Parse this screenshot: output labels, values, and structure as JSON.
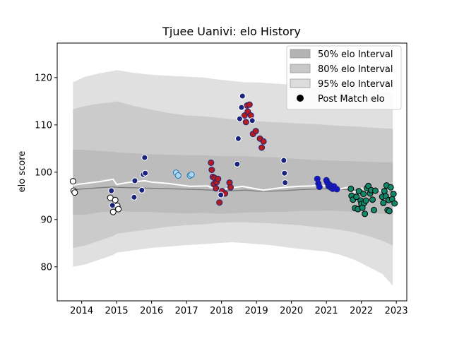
{
  "chart_data": {
    "type": "scatter",
    "title": "Tjuee Uanivi: elo History",
    "xlabel": "",
    "ylabel": "elo score",
    "xlim": [
      2013.3,
      2023.3
    ],
    "ylim": [
      72.8,
      127.3
    ],
    "x_ticks": [
      2014,
      2015,
      2016,
      2017,
      2018,
      2019,
      2020,
      2021,
      2022,
      2023
    ],
    "y_ticks": [
      80,
      90,
      100,
      110,
      120
    ],
    "grid": false,
    "legend_position": "top-right",
    "legend": [
      {
        "label": "50% elo Interval",
        "kind": "patch",
        "color": "#b3b3b3"
      },
      {
        "label": "80% elo Interval",
        "kind": "patch",
        "color": "#c8c8c8"
      },
      {
        "label": "95% elo Interval",
        "kind": "patch",
        "color": "#dddddd"
      },
      {
        "label": "Post Match elo",
        "kind": "marker",
        "color": "#000000"
      }
    ],
    "bands": {
      "x": [
        2013.75,
        2014.1,
        2014.5,
        2014.9,
        2015.0,
        2015.5,
        2016.0,
        2016.5,
        2017.0,
        2017.5,
        2017.9,
        2018.3,
        2018.7,
        2019.0,
        2019.4,
        2019.8,
        2020.2,
        2020.6,
        2021.0,
        2021.4,
        2021.8,
        2022.2,
        2022.6,
        2022.9
      ],
      "median": [
        96.3,
        96.5,
        96.7,
        96.9,
        96.8,
        96.7,
        96.6,
        96.5,
        96.4,
        96.3,
        96.1,
        96.1,
        96.2,
        96.0,
        96.0,
        96.1,
        96.3,
        96.4,
        96.5,
        96.4,
        96.2,
        96.1,
        96.1,
        96.0
      ],
      "lower50": [
        91.0,
        91.0,
        91.5,
        91.8,
        91.8,
        91.6,
        91.6,
        91.4,
        91.3,
        91.4,
        91.2,
        91.3,
        91.5,
        91.5,
        91.6,
        91.6,
        91.8,
        91.8,
        91.9,
        91.8,
        91.6,
        91.4,
        91.2,
        91.0
      ],
      "upper50": [
        104.8,
        104.7,
        104.5,
        104.3,
        104.2,
        104.0,
        103.8,
        103.7,
        103.6,
        103.6,
        103.4,
        103.4,
        103.4,
        103.2,
        103.2,
        103.0,
        102.8,
        102.6,
        102.5,
        102.4,
        102.3,
        102.2,
        102.1,
        102.1
      ],
      "lower80": [
        84.0,
        84.5,
        85.5,
        86.5,
        87.0,
        87.5,
        88.0,
        88.5,
        88.8,
        89.0,
        89.3,
        89.4,
        89.4,
        89.3,
        89.2,
        89.0,
        88.8,
        88.5,
        88.2,
        87.8,
        87.3,
        86.5,
        85.5,
        84.5
      ],
      "upper80": [
        113.3,
        114.0,
        114.5,
        114.8,
        115.0,
        114.0,
        113.2,
        112.5,
        112.0,
        111.8,
        111.5,
        111.2,
        111.0,
        110.8,
        110.6,
        110.5,
        110.3,
        110.2,
        110.0,
        109.8,
        109.7,
        109.5,
        109.3,
        109.2
      ],
      "lower95": [
        80.0,
        80.5,
        81.5,
        82.5,
        83.0,
        83.5,
        84.0,
        84.3,
        84.6,
        84.8,
        85.0,
        85.2,
        85.0,
        84.8,
        84.6,
        84.2,
        83.8,
        83.5,
        83.2,
        82.5,
        81.5,
        80.0,
        78.5,
        76.0
      ],
      "upper95": [
        119.0,
        120.2,
        120.9,
        121.4,
        121.6,
        121.0,
        120.6,
        120.4,
        120.2,
        120.0,
        119.6,
        119.3,
        119.0,
        119.0,
        118.8,
        118.6,
        118.4,
        118.0,
        117.8,
        117.6,
        117.6,
        117.3,
        117.1,
        117.0
      ]
    },
    "post_match_line": {
      "x": [
        2013.75,
        2014.5,
        2014.9,
        2015.0,
        2015.3,
        2015.8,
        2016.0,
        2016.5,
        2016.8,
        2017.1,
        2017.6,
        2017.9,
        2018.2,
        2018.4,
        2018.6,
        2018.9,
        2019.2,
        2019.4,
        2019.8,
        2020.2,
        2020.6,
        2020.8,
        2021.0,
        2021.3,
        2021.6,
        2021.8,
        2022.0,
        2022.2,
        2022.4,
        2022.6,
        2022.8,
        2022.95
      ],
      "y": [
        97.3,
        98.0,
        98.5,
        97.4,
        97.8,
        98.2,
        97.9,
        97.6,
        97.3,
        97.0,
        97.1,
        96.2,
        96.6,
        96.8,
        97.0,
        96.6,
        96.2,
        96.4,
        96.8,
        97.0,
        97.1,
        97.3,
        97.0,
        96.3,
        96.8,
        95.8,
        96.6,
        95.7,
        96.6,
        95.9,
        96.2,
        96.3
      ]
    },
    "series": [
      {
        "face": "#ffffff",
        "edge": "#000000",
        "points": [
          [
            2013.75,
            98.1
          ],
          [
            2013.77,
            96.1
          ],
          [
            2013.8,
            95.7
          ],
          [
            2014.82,
            94.6
          ],
          [
            2014.9,
            91.6
          ],
          [
            2014.92,
            93.1
          ],
          [
            2014.96,
            94.1
          ],
          [
            2015.02,
            92.9
          ],
          [
            2015.05,
            92.2
          ]
        ]
      },
      {
        "face": "#1a237e",
        "edge": "#ffffff",
        "points": [
          [
            2014.85,
            96.1
          ],
          [
            2014.88,
            93.0
          ],
          [
            2015.5,
            94.7
          ],
          [
            2015.52,
            98.2
          ],
          [
            2015.72,
            96.2
          ],
          [
            2015.76,
            99.5
          ],
          [
            2015.8,
            103.1
          ],
          [
            2015.82,
            99.8
          ]
        ]
      },
      {
        "face": "#aed6f1",
        "edge": "#1f77b4",
        "points": [
          [
            2016.7,
            99.9
          ],
          [
            2016.76,
            99.3
          ],
          [
            2017.1,
            99.3
          ],
          [
            2017.14,
            99.5
          ]
        ]
      },
      {
        "face": "#b71c1c",
        "edge": "#1a237e",
        "points": [
          [
            2017.7,
            102.0
          ],
          [
            2017.72,
            100.5
          ],
          [
            2017.75,
            99.0
          ],
          [
            2017.78,
            97.5
          ],
          [
            2017.8,
            98.8
          ],
          [
            2017.84,
            96.6
          ],
          [
            2017.86,
            97.9
          ],
          [
            2017.9,
            98.6
          ],
          [
            2017.94,
            93.6
          ],
          [
            2018.02,
            96.0
          ],
          [
            2018.1,
            95.5
          ],
          [
            2018.23,
            97.8
          ],
          [
            2018.26,
            96.8
          ],
          [
            2018.66,
            112.0
          ],
          [
            2018.7,
            110.6
          ],
          [
            2018.73,
            114.1
          ],
          [
            2018.75,
            112.8
          ],
          [
            2018.8,
            114.3
          ],
          [
            2018.84,
            112.0
          ],
          [
            2018.9,
            108.1
          ],
          [
            2018.98,
            108.7
          ],
          [
            2019.1,
            107.1
          ],
          [
            2019.15,
            105.2
          ],
          [
            2019.2,
            106.5
          ]
        ]
      },
      {
        "face": "#1a237e",
        "edge": "#ffffff",
        "points": [
          [
            2017.98,
            95.2
          ],
          [
            2018.45,
            101.7
          ],
          [
            2018.48,
            107.1
          ],
          [
            2018.52,
            111.3
          ],
          [
            2018.57,
            113.7
          ],
          [
            2018.6,
            116.1
          ],
          [
            2018.88,
            110.9
          ],
          [
            2019.78,
            102.5
          ],
          [
            2019.8,
            99.8
          ],
          [
            2019.82,
            97.8
          ]
        ]
      },
      {
        "face": "#1515c8",
        "edge": "#1a237e",
        "points": [
          [
            2020.74,
            98.6
          ],
          [
            2020.77,
            97.6
          ],
          [
            2020.8,
            96.9
          ],
          [
            2021.0,
            98.3
          ],
          [
            2021.03,
            97.8
          ],
          [
            2021.06,
            97.1
          ],
          [
            2021.1,
            97.3
          ],
          [
            2021.12,
            96.8
          ],
          [
            2021.18,
            96.5
          ],
          [
            2021.22,
            97.0
          ],
          [
            2021.3,
            96.4
          ]
        ]
      },
      {
        "face": "#12886a",
        "edge": "#000000",
        "points": [
          [
            2021.7,
            96.5
          ],
          [
            2021.72,
            95.0
          ],
          [
            2021.76,
            94.2
          ],
          [
            2021.82,
            92.4
          ],
          [
            2021.86,
            94.8
          ],
          [
            2021.9,
            92.2
          ],
          [
            2021.93,
            96.0
          ],
          [
            2021.98,
            94.0
          ],
          [
            2022.0,
            93.3
          ],
          [
            2022.03,
            92.5
          ],
          [
            2022.06,
            95.4
          ],
          [
            2022.08,
            93.5
          ],
          [
            2022.1,
            91.2
          ],
          [
            2022.13,
            94.0
          ],
          [
            2022.16,
            96.6
          ],
          [
            2022.2,
            97.1
          ],
          [
            2022.25,
            95.5
          ],
          [
            2022.28,
            96.2
          ],
          [
            2022.32,
            94.2
          ],
          [
            2022.36,
            92.0
          ],
          [
            2022.4,
            96.1
          ],
          [
            2022.6,
            94.8
          ],
          [
            2022.63,
            93.5
          ],
          [
            2022.66,
            96.0
          ],
          [
            2022.7,
            94.9
          ],
          [
            2022.72,
            97.2
          ],
          [
            2022.75,
            92.0
          ],
          [
            2022.78,
            94.1
          ],
          [
            2022.8,
            91.8
          ],
          [
            2022.84,
            96.8
          ],
          [
            2022.88,
            94.3
          ],
          [
            2022.92,
            95.4
          ],
          [
            2022.95,
            93.4
          ]
        ]
      }
    ]
  }
}
